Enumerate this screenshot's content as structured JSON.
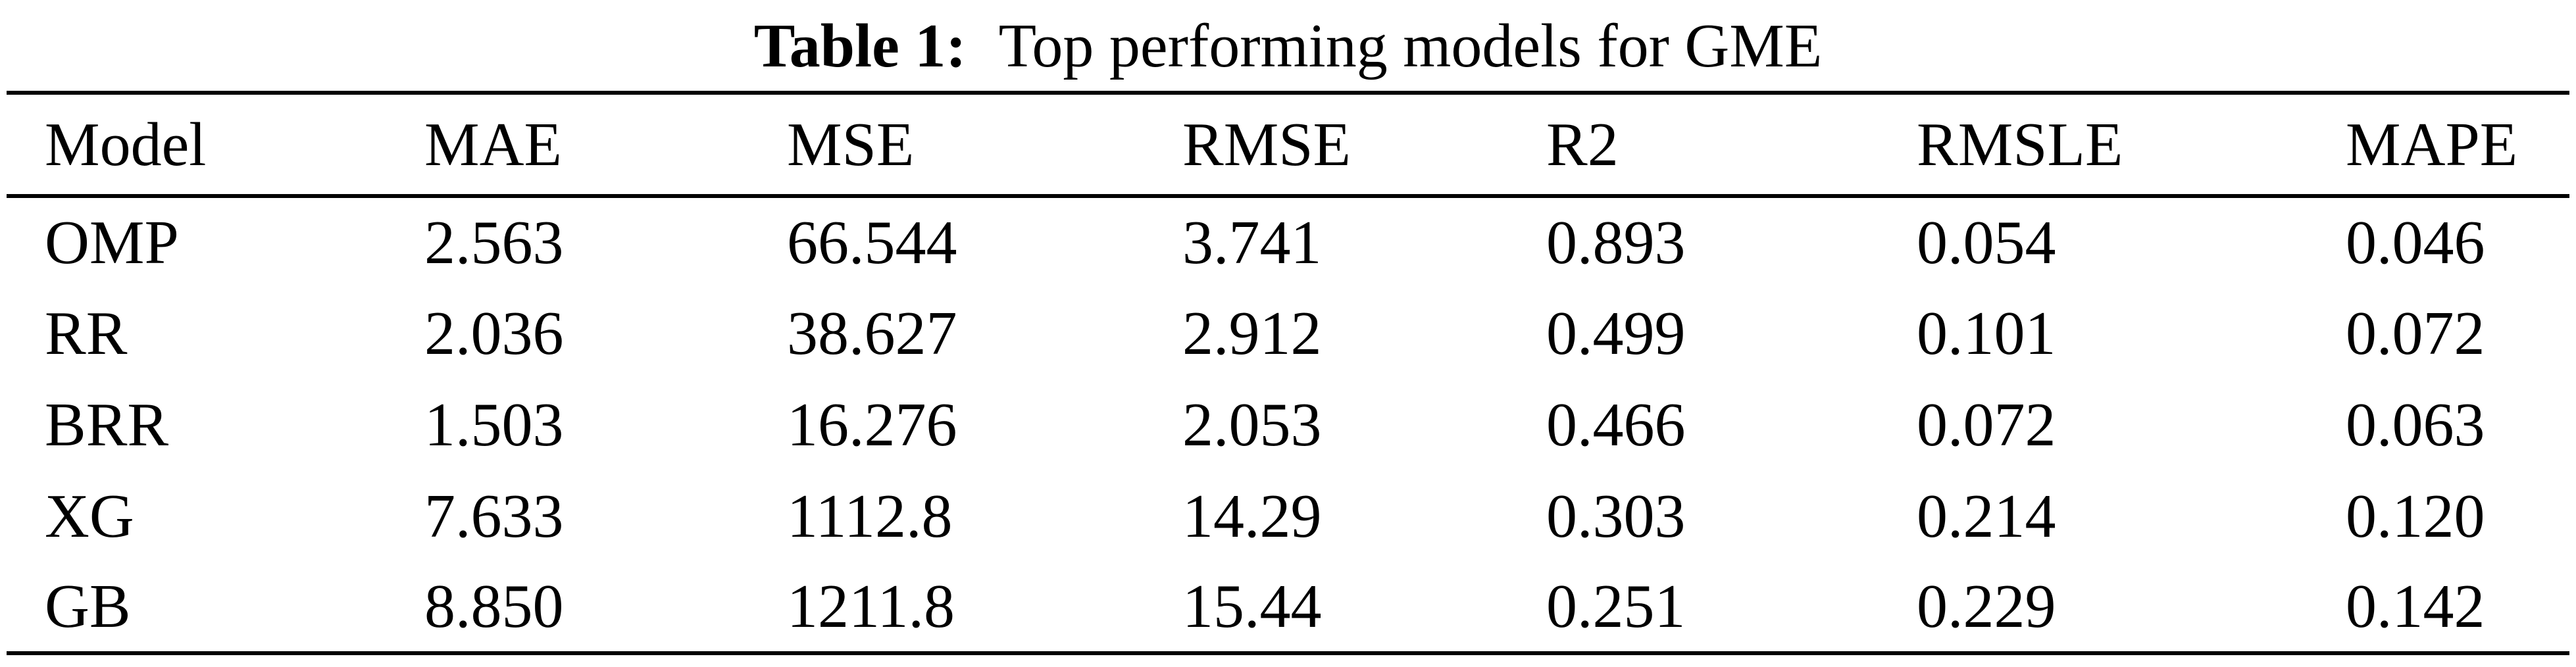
{
  "caption": {
    "label": "Table 1:",
    "title": "Top performing models for GME"
  },
  "table": {
    "headers": [
      "Model",
      "MAE",
      "MSE",
      "RMSE",
      "R2",
      "RMSLE",
      "MAPE"
    ],
    "rows": [
      {
        "cells": [
          "OMP",
          "2.563",
          "66.544",
          "3.741",
          "0.893",
          "0.054",
          "0.046"
        ]
      },
      {
        "cells": [
          "RR",
          "2.036",
          "38.627",
          "2.912",
          "0.499",
          "0.101",
          "0.072"
        ]
      },
      {
        "cells": [
          "BRR",
          "1.503",
          "16.276",
          "2.053",
          "0.466",
          "0.072",
          "0.063"
        ]
      },
      {
        "cells": [
          "XG",
          "7.633",
          "1112.8",
          "14.29",
          "0.303",
          "0.214",
          "0.120"
        ]
      },
      {
        "cells": [
          "GB",
          "8.850",
          "1211.8",
          "15.44",
          "0.251",
          "0.229",
          "0.142"
        ]
      }
    ]
  },
  "colors": {
    "text": "#000000",
    "background": "#ffffff",
    "rule": "#000000"
  }
}
